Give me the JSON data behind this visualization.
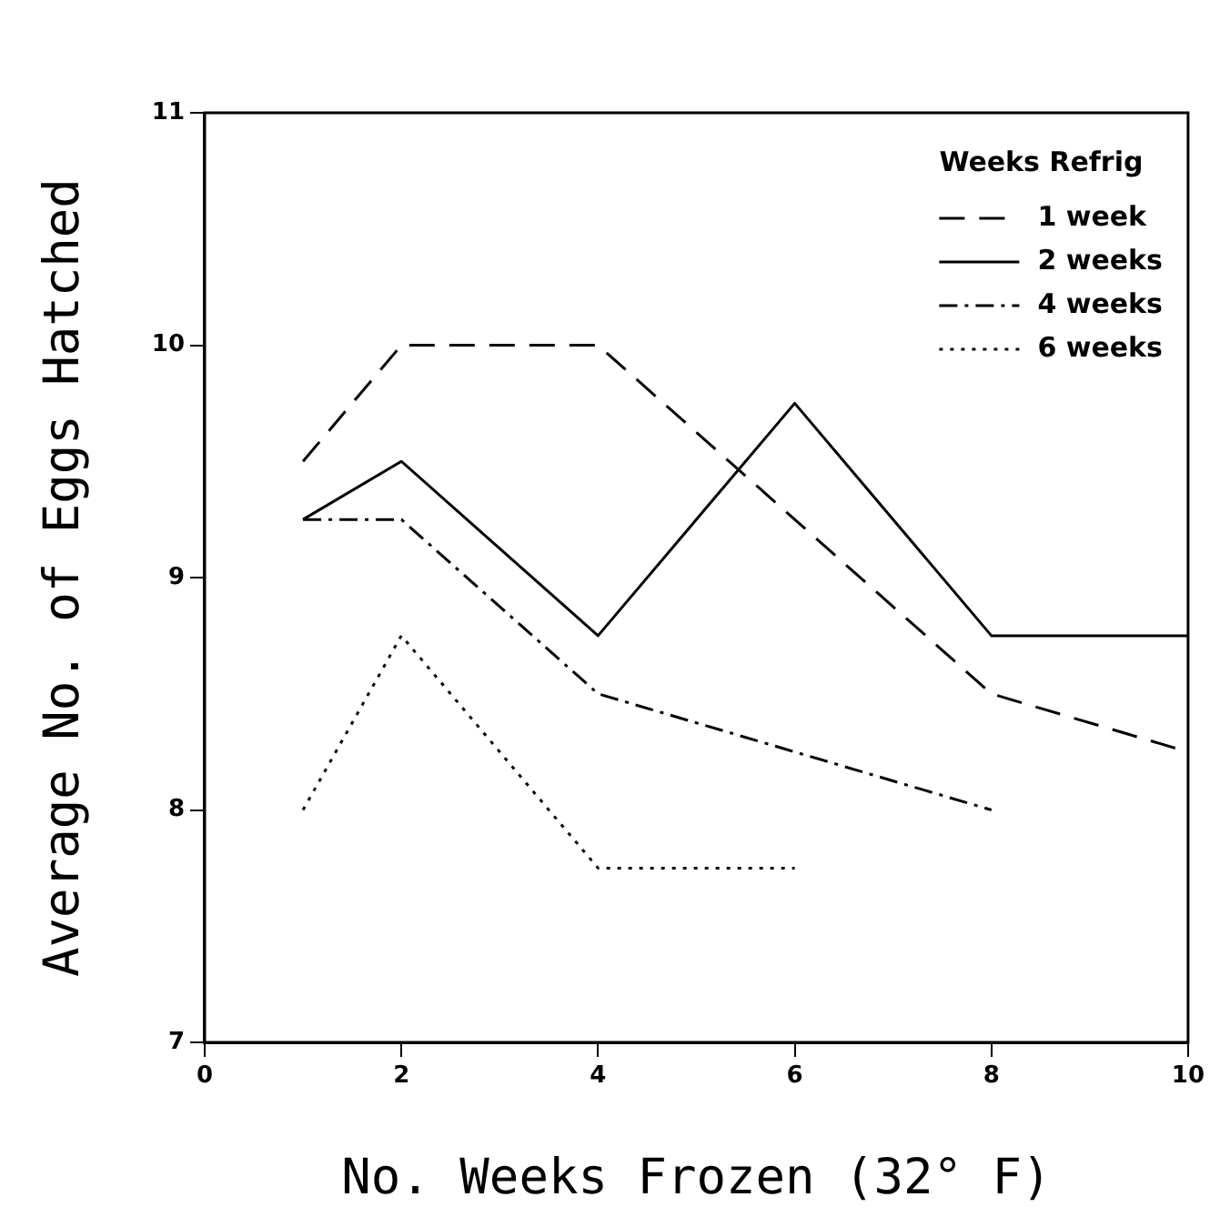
{
  "chart_data": {
    "type": "line",
    "xlabel": "No. Weeks Frozen (32° F)",
    "ylabel": "Average No. of Eggs Hatched",
    "legend_title": "Weeks Refrig",
    "legend": "top right",
    "grid": false,
    "marker": "none",
    "xlim": [
      0,
      10
    ],
    "xticks": [
      0,
      2,
      4,
      6,
      8,
      10
    ],
    "ylim": [
      7,
      11
    ],
    "yticks": [
      7,
      8,
      9,
      10,
      11
    ],
    "series": [
      {
        "name": "1 week",
        "color": "#000000",
        "line_style": "dashed",
        "x": [
          1,
          2,
          4,
          6,
          8,
          10
        ],
        "values": [
          9.5,
          10,
          10,
          9.25,
          8.5,
          8.25
        ]
      },
      {
        "name": "2 weeks",
        "color": "#000000",
        "line_style": "solid",
        "x": [
          1,
          2,
          4,
          6,
          8,
          10
        ],
        "values": [
          9.25,
          9.5,
          8.75,
          9.75,
          8.75,
          8.75
        ]
      },
      {
        "name": "4 weeks",
        "color": "#000000",
        "line_style": "dashdot",
        "x": [
          1,
          2,
          4,
          6,
          8
        ],
        "values": [
          9.25,
          9.25,
          8.5,
          8.25,
          8
        ]
      },
      {
        "name": "6 weeks",
        "color": "#000000",
        "line_style": "dotted",
        "x": [
          1,
          2,
          4,
          6
        ],
        "values": [
          8,
          8.75,
          7.75,
          7.75
        ]
      }
    ]
  }
}
